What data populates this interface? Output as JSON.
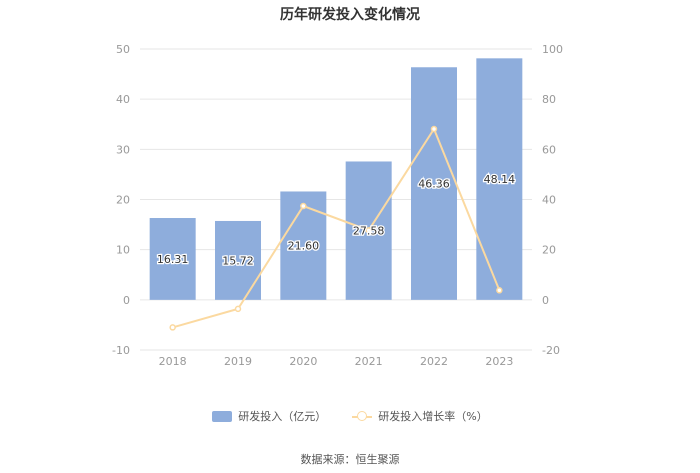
{
  "chart_data": {
    "type": "bar",
    "title": "历年研发投入变化情况",
    "categories": [
      "2018",
      "2019",
      "2020",
      "2021",
      "2022",
      "2023"
    ],
    "series": [
      {
        "name": "研发投入（亿元）",
        "type": "bar",
        "axis": "left",
        "values": [
          16.31,
          15.72,
          21.6,
          27.58,
          46.36,
          48.14
        ],
        "labels": [
          "16.31",
          "15.72",
          "21.60",
          "27.58",
          "46.36",
          "48.14"
        ]
      },
      {
        "name": "研发投入增长率（%）",
        "type": "line",
        "axis": "right",
        "values": [
          -11,
          -3.6,
          37.4,
          27.7,
          68.1,
          3.8
        ]
      }
    ],
    "left_axis": {
      "ylim": [
        -10,
        50
      ],
      "ticks": [
        "-10",
        "0",
        "10",
        "20",
        "30",
        "40",
        "50"
      ]
    },
    "right_axis": {
      "ylim": [
        -20,
        100
      ],
      "ticks": [
        "-20",
        "0",
        "20",
        "40",
        "60",
        "80",
        "100"
      ]
    },
    "grid": true,
    "legend_position": "bottom"
  },
  "colors": {
    "bar": "#8eaddc",
    "line": "#fbd9a0",
    "grid": "#e6e6e6",
    "tick_text": "#999999"
  },
  "source": "数据来源：恒生聚源"
}
